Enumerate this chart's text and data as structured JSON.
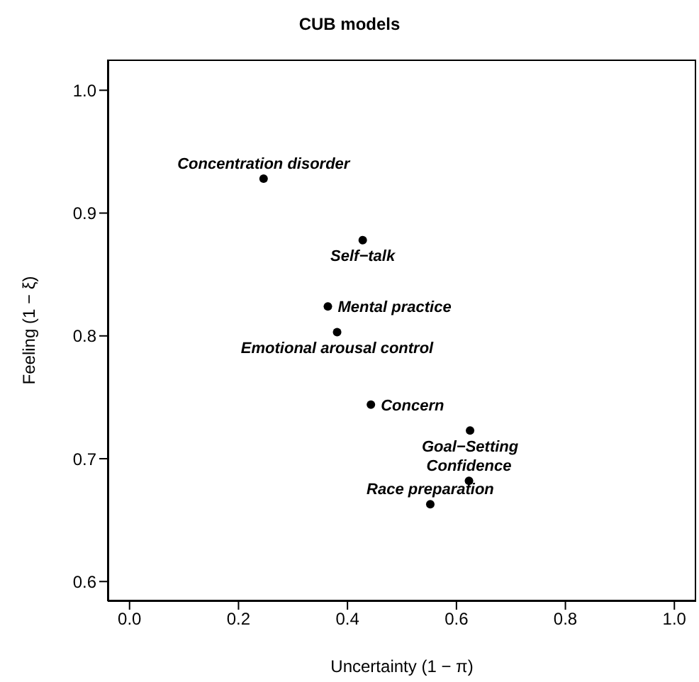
{
  "chart_data": {
    "type": "scatter",
    "title": "CUB models",
    "xlabel": "Uncertainty  (1 − π)",
    "ylabel": "Feeling  (1 − ξ)",
    "x": [
      0.246,
      0.428,
      0.364,
      0.381,
      0.443,
      0.625,
      0.623,
      0.552
    ],
    "values": [
      0.928,
      0.878,
      0.824,
      0.803,
      0.744,
      0.723,
      0.682,
      0.663
    ],
    "color": "#000000",
    "marker": "circle",
    "grid": false,
    "xlim": [
      -0.04,
      1.04
    ],
    "xticks": [
      {
        "value": 0,
        "label": "0.0"
      },
      0.2,
      0.4,
      0.6,
      0.8,
      {
        "value": 1,
        "label": "1.0"
      }
    ],
    "ylim": [
      0.584,
      1.025
    ],
    "yticks": [
      0.6,
      0.7,
      0.8,
      0.9,
      {
        "value": 1,
        "label": "1.0"
      }
    ],
    "annotations": [
      {
        "text": "Concentration disorder",
        "x": 0.246,
        "y": 0.928
      },
      {
        "text": "Self−talk",
        "x": 0.428,
        "y": 0.878
      },
      {
        "text": "Mental practice",
        "x": 0.364,
        "y": 0.824
      },
      {
        "text": "Emotional arousal control",
        "x": 0.381,
        "y": 0.803
      },
      {
        "text": "Concern",
        "x": 0.443,
        "y": 0.744
      },
      {
        "text": "Goal−Setting",
        "x": 0.625,
        "y": 0.723
      },
      {
        "text": "Confidence",
        "x": 0.623,
        "y": 0.682
      },
      {
        "text": "Race preparation",
        "x": 0.552,
        "y": 0.663
      }
    ]
  }
}
